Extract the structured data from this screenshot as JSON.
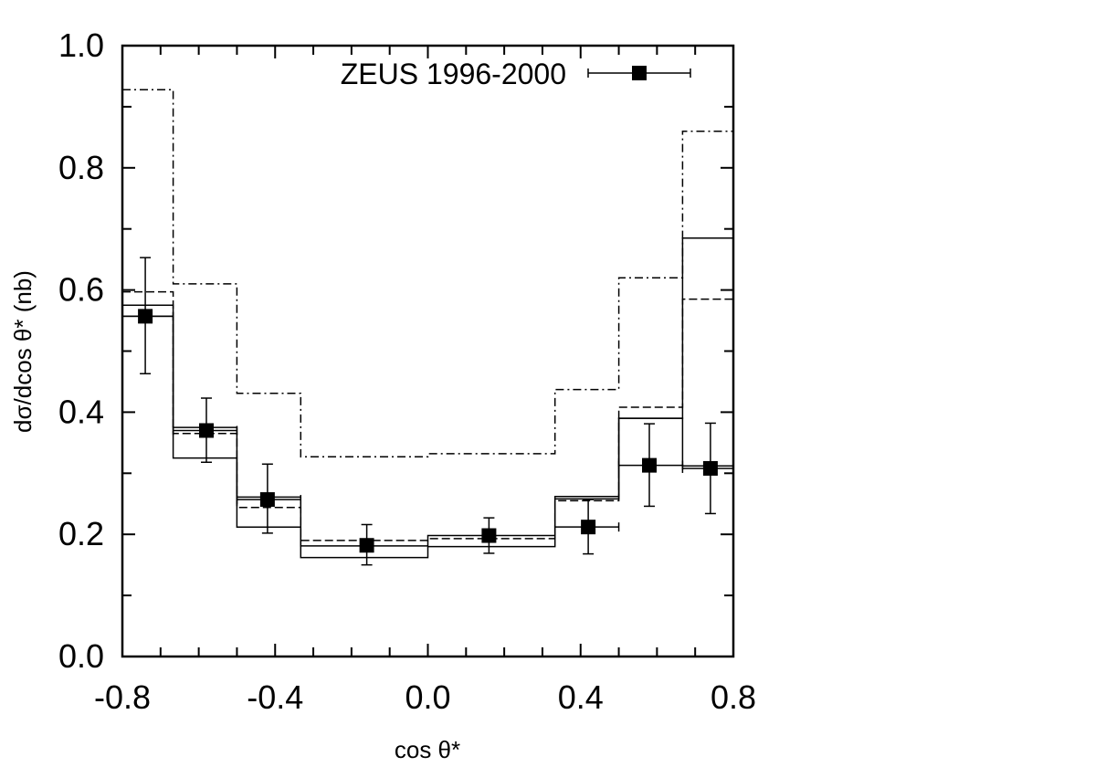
{
  "chart_data": {
    "type": "step",
    "xlabel": "cos θ*",
    "ylabel": "dσ/dcos θ* (nb)",
    "xlim": [
      -0.8,
      0.8
    ],
    "ylim": [
      0.0,
      1.0
    ],
    "x_ticks": [
      "-0.8",
      "-0.4",
      "0.0",
      "0.4",
      "0.8"
    ],
    "y_ticks": [
      "0.0",
      "0.2",
      "0.4",
      "0.6",
      "0.8",
      "1.0"
    ],
    "bin_edges": [
      -0.8,
      -0.667,
      -0.5,
      -0.333,
      0.0,
      0.333,
      0.5,
      0.667,
      0.8
    ],
    "data_series": {
      "name": "ZEUS 1996-2000",
      "points": [
        {
          "x": -0.74,
          "y": 0.557,
          "yerr_low": 0.463,
          "yerr_high": 0.653,
          "xerr_low": -0.8,
          "xerr_high": -0.667
        },
        {
          "x": -0.58,
          "y": 0.37,
          "yerr_low": 0.318,
          "yerr_high": 0.423,
          "xerr_low": -0.667,
          "xerr_high": -0.5
        },
        {
          "x": -0.42,
          "y": 0.257,
          "yerr_low": 0.202,
          "yerr_high": 0.315,
          "xerr_low": -0.5,
          "xerr_high": -0.333
        },
        {
          "x": -0.16,
          "y": 0.182,
          "yerr_low": 0.15,
          "yerr_high": 0.216,
          "xerr_low": -0.16,
          "xerr_high": -0.16
        },
        {
          "x": 0.16,
          "y": 0.198,
          "yerr_low": 0.169,
          "yerr_high": 0.227,
          "xerr_low": 0.16,
          "xerr_high": 0.16
        },
        {
          "x": 0.42,
          "y": 0.212,
          "yerr_low": 0.168,
          "yerr_high": 0.257,
          "xerr_low": 0.333,
          "xerr_high": 0.5
        },
        {
          "x": 0.58,
          "y": 0.313,
          "yerr_low": 0.246,
          "yerr_high": 0.381,
          "xerr_low": 0.5,
          "xerr_high": 0.667
        },
        {
          "x": 0.74,
          "y": 0.308,
          "yerr_low": 0.234,
          "yerr_high": 0.382,
          "xerr_low": 0.667,
          "xerr_high": 0.8
        }
      ]
    },
    "histograms": [
      {
        "style": "solid",
        "values": [
          0.575,
          0.325,
          0.212,
          0.162,
          0.18,
          0.258,
          0.39,
          0.685
        ]
      },
      {
        "style": "dashed",
        "values": [
          0.597,
          0.365,
          0.244,
          0.19,
          0.193,
          0.255,
          0.408,
          0.585
        ]
      },
      {
        "style": "dashdot",
        "values": [
          0.928,
          0.61,
          0.431,
          0.327,
          0.332,
          0.437,
          0.62,
          0.86
        ]
      },
      {
        "style": "solid",
        "values": [
          0.557,
          0.375,
          0.261,
          0.181,
          0.198,
          0.262,
          0.39,
          0.312
        ]
      }
    ],
    "legend_position": "top-right"
  }
}
